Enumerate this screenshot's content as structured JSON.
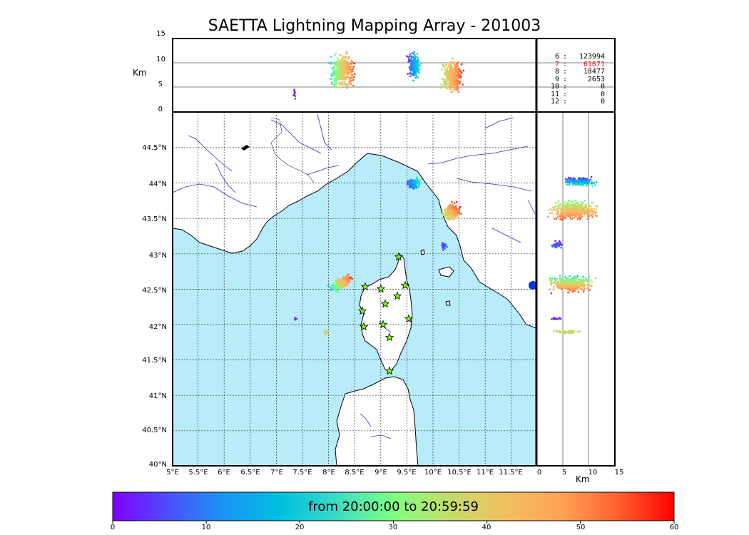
{
  "title": "SAETTA Lightning Mapping Array - 201003",
  "altitude_panel": {
    "ylabel": "Km",
    "yticks": [
      "15",
      "10",
      "5",
      "0"
    ]
  },
  "side_panel": {
    "xlabel": "Km",
    "xticks": [
      "0",
      "5",
      "10",
      "15"
    ]
  },
  "map": {
    "lat_labels": [
      "44.5°N",
      "44°N",
      "43.5°N",
      "43°N",
      "42.5°N",
      "42°N",
      "41.5°N",
      "41°N",
      "40.5°N",
      "40°N"
    ],
    "lon_labels": [
      "5°E",
      "5.5°E",
      "6°E",
      "6.5°E",
      "7°E",
      "7.5°E",
      "8°E",
      "8.5°E",
      "9°E",
      "9.5°E",
      "10°E",
      "10.5°E",
      "11°E",
      "11.5°E"
    ],
    "sea_color": "#b8ecfb",
    "land_color": "#ffffff",
    "river_color": "#2b2bd8",
    "station_color": "#7fff00",
    "station_count": 12
  },
  "stations_stats": [
    {
      "n": "6",
      "sep": ":",
      "v": "123994",
      "highlight": false
    },
    {
      "n": "7",
      "sep": ":",
      "v": "61671",
      "highlight": true
    },
    {
      "n": "8",
      "sep": ":",
      "v": "18477",
      "highlight": false
    },
    {
      "n": "9",
      "sep": ":",
      "v": "2653",
      "highlight": false
    },
    {
      "n": "10",
      "sep": ":",
      "v": "0",
      "highlight": false
    },
    {
      "n": "11",
      "sep": ":",
      "v": "0",
      "highlight": false
    },
    {
      "n": "12",
      "sep": ":",
      "v": "0",
      "highlight": false
    }
  ],
  "colorbar": {
    "label": "from 20:00:00 to 20:59:59",
    "ticks": [
      "0",
      "10",
      "20",
      "30",
      "40",
      "50",
      "60"
    ],
    "range": [
      0,
      60
    ],
    "colors": [
      "#7f00ff",
      "#4a50fc",
      "#1996f3",
      "#00c0e0",
      "#3cdcc4",
      "#80ff80",
      "#c4dc6a",
      "#f0c060",
      "#ffa256",
      "#ff6030",
      "#ff0000"
    ]
  }
}
